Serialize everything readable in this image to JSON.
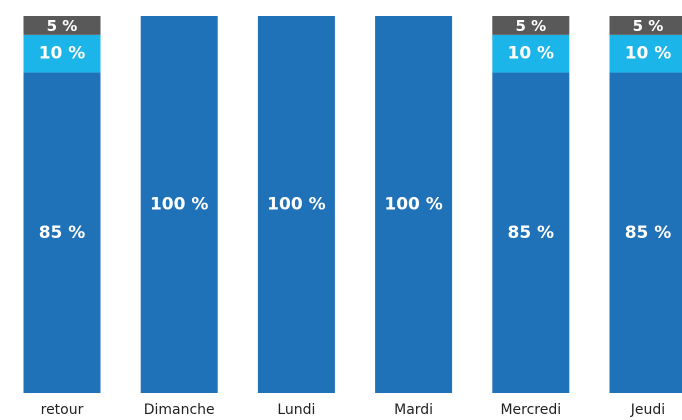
{
  "chart_data": {
    "type": "stacked-bar",
    "categories": [
      "retour",
      "Dimanche",
      "Lundi",
      "Mardi",
      "Mercredi",
      "Jeudi"
    ],
    "series": [
      {
        "color": "#1f71b8",
        "values": [
          85,
          100,
          100,
          100,
          85,
          85
        ],
        "value_labels": [
          "85 %",
          "100 %",
          "100 %",
          "100 %",
          "85 %",
          "85 %"
        ]
      },
      {
        "color": "#1bb5ea",
        "values": [
          10,
          0,
          0,
          0,
          10,
          10
        ],
        "value_labels": [
          "10 %",
          null,
          null,
          null,
          "10 %",
          "10 %"
        ]
      },
      {
        "color": "#595959",
        "values": [
          5,
          0,
          0,
          0,
          5,
          5
        ],
        "value_labels": [
          "5 %",
          null,
          null,
          null,
          "5 %",
          "5 %"
        ]
      }
    ],
    "ylim": [
      0,
      100
    ]
  }
}
